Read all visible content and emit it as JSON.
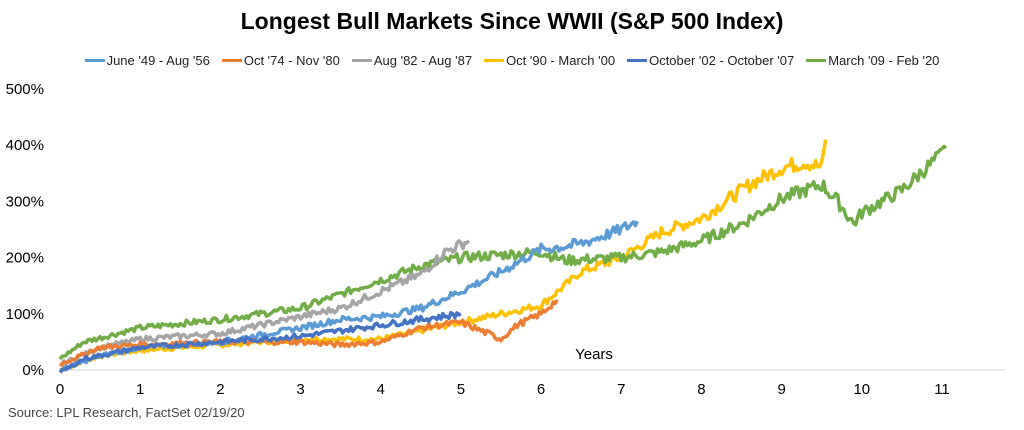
{
  "chart_data": {
    "type": "line",
    "title": "Longest Bull Markets Since WWII (S&P 500 Index)",
    "xlabel": "Years",
    "ylabel": "",
    "xlim": [
      0,
      11.8
    ],
    "ylim": [
      0,
      500
    ],
    "xticks": [
      "0",
      "1",
      "2",
      "3",
      "4",
      "5",
      "6",
      "7",
      "8",
      "9",
      "10",
      "11"
    ],
    "yticks": [
      "0%",
      "100%",
      "200%",
      "300%",
      "400%",
      "500%"
    ],
    "legend_position": "top",
    "grid": false,
    "source": "Source: LPL Research, FactSet 02/19/20",
    "series": [
      {
        "name": "June '49 - Aug '56",
        "color": "#5B9BD5",
        "points": [
          [
            0,
            0
          ],
          [
            0.5,
            25
          ],
          [
            1,
            40
          ],
          [
            2,
            50
          ],
          [
            3,
            75
          ],
          [
            3.5,
            90
          ],
          [
            4,
            95
          ],
          [
            4.5,
            110
          ],
          [
            5,
            140
          ],
          [
            5.5,
            175
          ],
          [
            6,
            215
          ],
          [
            6.3,
            220
          ],
          [
            6.5,
            225
          ],
          [
            7,
            250
          ],
          [
            7.2,
            265
          ]
        ]
      },
      {
        "name": "Oct '74 - Nov '80",
        "color": "#ED7D31",
        "points": [
          [
            0,
            10
          ],
          [
            0.5,
            40
          ],
          [
            1,
            45
          ],
          [
            2,
            50
          ],
          [
            3,
            50
          ],
          [
            3.5,
            45
          ],
          [
            4,
            50
          ],
          [
            4.5,
            75
          ],
          [
            5,
            85
          ],
          [
            5.5,
            55
          ],
          [
            5.7,
            80
          ],
          [
            6,
            100
          ],
          [
            6.2,
            125
          ]
        ]
      },
      {
        "name": "Aug '82 - Aug '87",
        "color": "#A5A5A5",
        "points": [
          [
            0,
            10
          ],
          [
            0.5,
            40
          ],
          [
            1,
            55
          ],
          [
            2,
            65
          ],
          [
            3,
            95
          ],
          [
            3.5,
            110
          ],
          [
            4,
            140
          ],
          [
            4.5,
            170
          ],
          [
            4.8,
            210
          ],
          [
            5.1,
            230
          ]
        ]
      },
      {
        "name": "Oct '90 - March '00",
        "color": "#FFC000",
        "points": [
          [
            0,
            0
          ],
          [
            0.5,
            25
          ],
          [
            1,
            35
          ],
          [
            2,
            45
          ],
          [
            3,
            55
          ],
          [
            4,
            55
          ],
          [
            4.5,
            70
          ],
          [
            5,
            85
          ],
          [
            5.5,
            100
          ],
          [
            6,
            115
          ],
          [
            6.5,
            175
          ],
          [
            7,
            200
          ],
          [
            7.5,
            245
          ],
          [
            8,
            270
          ],
          [
            8.3,
            300
          ],
          [
            8.6,
            330
          ],
          [
            9,
            360
          ],
          [
            9.3,
            370
          ],
          [
            9.5,
            360
          ],
          [
            9.55,
            410
          ]
        ]
      },
      {
        "name": "October '02 - October '07",
        "color": "#4472C4",
        "points": [
          [
            0,
            -5
          ],
          [
            0.3,
            20
          ],
          [
            1,
            40
          ],
          [
            2,
            50
          ],
          [
            3,
            60
          ],
          [
            4,
            80
          ],
          [
            4.5,
            90
          ],
          [
            5,
            100
          ]
        ]
      },
      {
        "name": "March '09 - Feb '20",
        "color": "#70AD47",
        "points": [
          [
            0,
            20
          ],
          [
            0.3,
            50
          ],
          [
            1,
            75
          ],
          [
            2,
            90
          ],
          [
            2.5,
            100
          ],
          [
            3,
            110
          ],
          [
            4,
            160
          ],
          [
            4.5,
            185
          ],
          [
            5,
            200
          ],
          [
            6,
            210
          ],
          [
            6.3,
            195
          ],
          [
            7,
            200
          ],
          [
            7.5,
            210
          ],
          [
            8,
            230
          ],
          [
            8.5,
            260
          ],
          [
            9,
            305
          ],
          [
            9.5,
            330
          ],
          [
            9.7,
            300
          ],
          [
            9.9,
            260
          ],
          [
            10,
            280
          ],
          [
            10.5,
            320
          ],
          [
            11,
            385
          ],
          [
            11.05,
            395
          ]
        ]
      }
    ]
  }
}
